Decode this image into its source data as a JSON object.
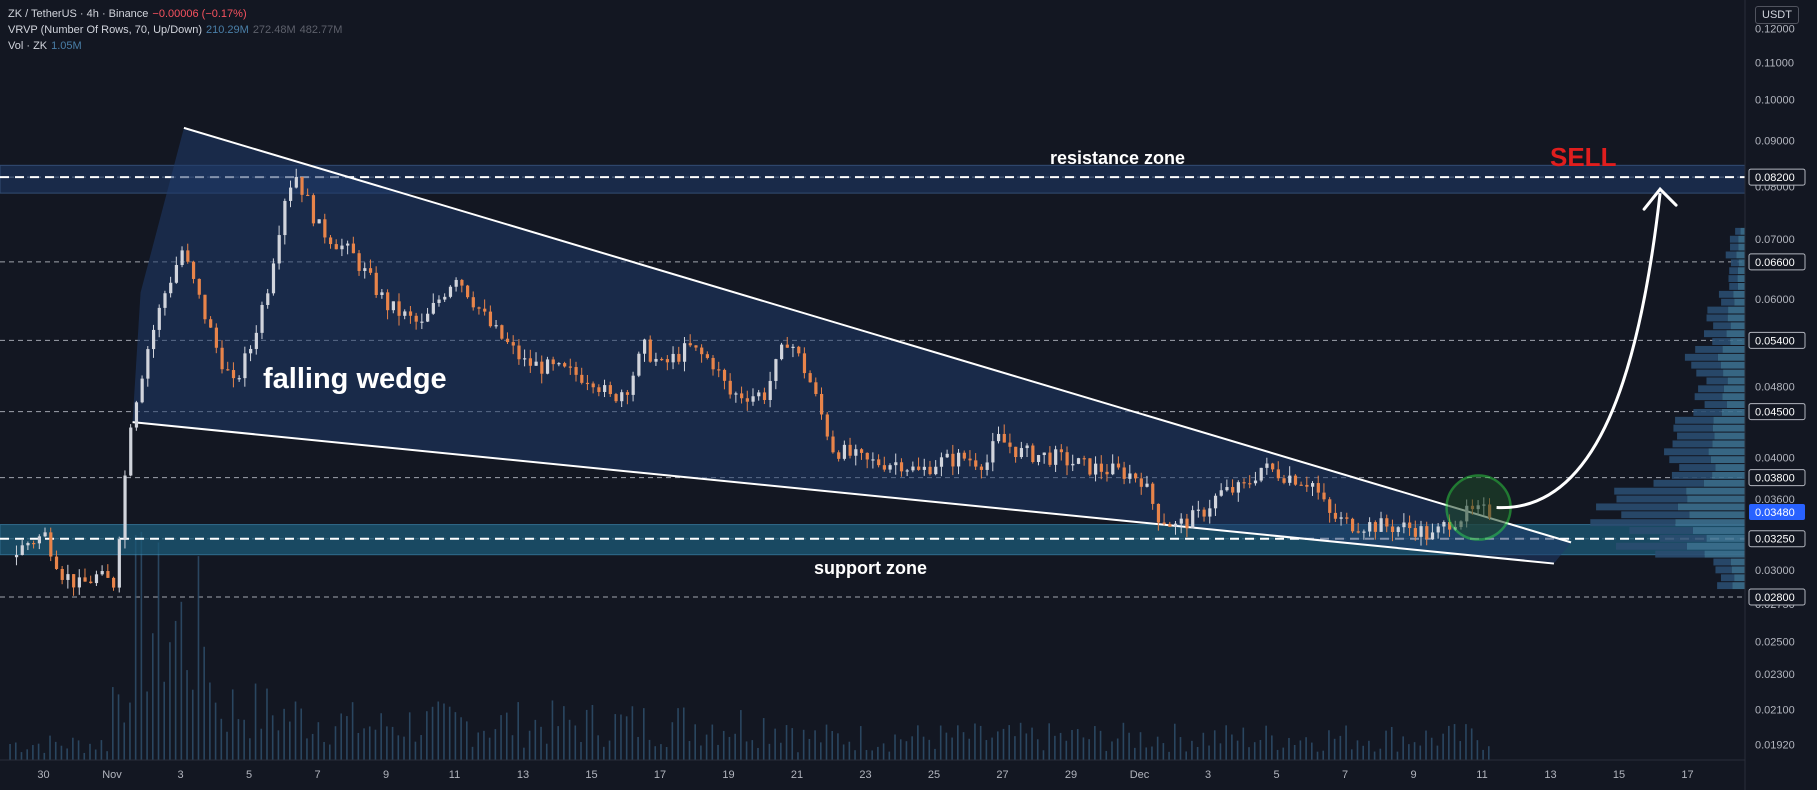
{
  "legend": {
    "symbol": "ZK / TetherUS · 4h · Binance",
    "change": "−0.00006 (−0.17%)",
    "vrvp_label": "VRVP (Number Of Rows, 70, Up/Down)",
    "vrvp_v1": "210.29M",
    "vrvp_v2": "272.48M",
    "vrvp_v3": "482.77M",
    "vol_label": "Vol · ZK",
    "vol_value": "1.05M"
  },
  "axis_currency": "USDT",
  "annotations": {
    "wedge": "falling wedge",
    "resistance": "resistance zone",
    "support": "support zone",
    "signal": "SELL"
  },
  "colors": {
    "background": "#131722",
    "up": "#d1d4dc",
    "down": "#e8844a",
    "wedge_fill": "#1f3a6a",
    "zone_fill": "#1b5a78",
    "signal": "#e01e1e",
    "circle": "#2ecc40",
    "current_price_badge": "#2962ff"
  },
  "chart_data": {
    "type": "candlestick",
    "y_scale": "log",
    "ylim": [
      0.01845,
      0.129
    ],
    "y_ticks": [
      "0.12000",
      "0.11000",
      "0.10000",
      "0.09000",
      "0.08000",
      "0.07000",
      "0.06000",
      "0.04800",
      "0.04000",
      "0.03600",
      "0.03000",
      "0.02750",
      "0.02500",
      "0.02300",
      "0.02100",
      "0.01920"
    ],
    "y_tick_values": [
      0.12,
      0.11,
      0.1,
      0.09,
      0.08,
      0.07,
      0.06,
      0.048,
      0.04,
      0.036,
      0.03,
      0.0275,
      0.025,
      0.023,
      0.021,
      0.0192
    ],
    "x_ticks": [
      "30",
      "Nov",
      "3",
      "5",
      "7",
      "9",
      "11",
      "13",
      "15",
      "17",
      "19",
      "21",
      "23",
      "25",
      "27",
      "29",
      "Dec",
      "3",
      "5",
      "7",
      "9",
      "11",
      "13",
      "15",
      "17"
    ],
    "x_tick_days": [
      -2,
      0,
      2,
      4,
      6,
      8,
      10,
      12,
      14,
      16,
      18,
      20,
      22,
      24,
      26,
      28,
      30,
      32,
      34,
      36,
      38,
      40,
      42,
      44,
      46
    ],
    "price_levels": [
      {
        "label": "0.08200",
        "value": 0.082
      },
      {
        "label": "0.06600",
        "value": 0.066
      },
      {
        "label": "0.05400",
        "value": 0.054
      },
      {
        "label": "0.04500",
        "value": 0.045
      },
      {
        "label": "0.03800",
        "value": 0.038
      },
      {
        "label": "0.03250",
        "value": 0.0325
      },
      {
        "label": "0.02800",
        "value": 0.028
      }
    ],
    "current_price": {
      "label": "0.03480",
      "value": 0.0348
    },
    "resistance_zone": [
      0.0787,
      0.0845
    ],
    "support_zone": [
      0.0312,
      0.0337
    ],
    "wedge_upper": [
      {
        "day": 2.1,
        "price": 0.093
      },
      {
        "day": 42.6,
        "price": 0.0322
      }
    ],
    "wedge_lower": [
      {
        "day": 0.6,
        "price": 0.0438
      },
      {
        "day": 42.1,
        "price": 0.0305
      }
    ],
    "price_path": [
      {
        "day": -3,
        "price": 0.031
      },
      {
        "day": -2.5,
        "price": 0.0322
      },
      {
        "day": -2,
        "price": 0.0328
      },
      {
        "day": -1.5,
        "price": 0.0298
      },
      {
        "day": -1,
        "price": 0.0288
      },
      {
        "day": -0.5,
        "price": 0.0295
      },
      {
        "day": 0,
        "price": 0.029
      },
      {
        "day": 0.2,
        "price": 0.034
      },
      {
        "day": 0.5,
        "price": 0.044
      },
      {
        "day": 1,
        "price": 0.053
      },
      {
        "day": 1.5,
        "price": 0.061
      },
      {
        "day": 2,
        "price": 0.068
      },
      {
        "day": 2.5,
        "price": 0.06
      },
      {
        "day": 3,
        "price": 0.053
      },
      {
        "day": 3.5,
        "price": 0.048
      },
      {
        "day": 4,
        "price": 0.053
      },
      {
        "day": 4.5,
        "price": 0.062
      },
      {
        "day": 5,
        "price": 0.078
      },
      {
        "day": 5.3,
        "price": 0.083
      },
      {
        "day": 6,
        "price": 0.072
      },
      {
        "day": 7,
        "price": 0.067
      },
      {
        "day": 8,
        "price": 0.059
      },
      {
        "day": 9,
        "price": 0.056
      },
      {
        "day": 9.5,
        "price": 0.06
      },
      {
        "day": 10,
        "price": 0.064
      },
      {
        "day": 11,
        "price": 0.056
      },
      {
        "day": 12,
        "price": 0.051
      },
      {
        "day": 13,
        "price": 0.05
      },
      {
        "day": 14,
        "price": 0.049
      },
      {
        "day": 14.5,
        "price": 0.0465
      },
      {
        "day": 15,
        "price": 0.048
      },
      {
        "day": 15.5,
        "price": 0.053
      },
      {
        "day": 16,
        "price": 0.0505
      },
      {
        "day": 16.8,
        "price": 0.053
      },
      {
        "day": 17.5,
        "price": 0.051
      },
      {
        "day": 18,
        "price": 0.047
      },
      {
        "day": 19,
        "price": 0.047
      },
      {
        "day": 19.7,
        "price": 0.0545
      },
      {
        "day": 20.3,
        "price": 0.049
      },
      {
        "day": 21,
        "price": 0.041
      },
      {
        "day": 22,
        "price": 0.0395
      },
      {
        "day": 23,
        "price": 0.0395
      },
      {
        "day": 23.5,
        "price": 0.0385
      },
      {
        "day": 24,
        "price": 0.0395
      },
      {
        "day": 24.8,
        "price": 0.04
      },
      {
        "day": 25.5,
        "price": 0.0395
      },
      {
        "day": 25.8,
        "price": 0.042
      },
      {
        "day": 26.5,
        "price": 0.0405
      },
      {
        "day": 27.5,
        "price": 0.04
      },
      {
        "day": 28.5,
        "price": 0.039
      },
      {
        "day": 29.5,
        "price": 0.0385
      },
      {
        "day": 30,
        "price": 0.038
      },
      {
        "day": 30.5,
        "price": 0.0345
      },
      {
        "day": 31,
        "price": 0.0335
      },
      {
        "day": 31.7,
        "price": 0.0345
      },
      {
        "day": 32.3,
        "price": 0.0365
      },
      {
        "day": 33,
        "price": 0.037
      },
      {
        "day": 33.5,
        "price": 0.039
      },
      {
        "day": 34,
        "price": 0.0385
      },
      {
        "day": 34.5,
        "price": 0.038
      },
      {
        "day": 35,
        "price": 0.0375
      },
      {
        "day": 35.5,
        "price": 0.0345
      },
      {
        "day": 36,
        "price": 0.0338
      },
      {
        "day": 37,
        "price": 0.0336
      },
      {
        "day": 38,
        "price": 0.0334
      },
      {
        "day": 38.5,
        "price": 0.0326
      },
      {
        "day": 39,
        "price": 0.034
      },
      {
        "day": 39.5,
        "price": 0.0346
      },
      {
        "day": 40,
        "price": 0.0348
      }
    ],
    "volume_profile_peak": 0.0345,
    "forecast_arrow_to": {
      "day": 45.2,
      "price": 0.0795
    }
  }
}
